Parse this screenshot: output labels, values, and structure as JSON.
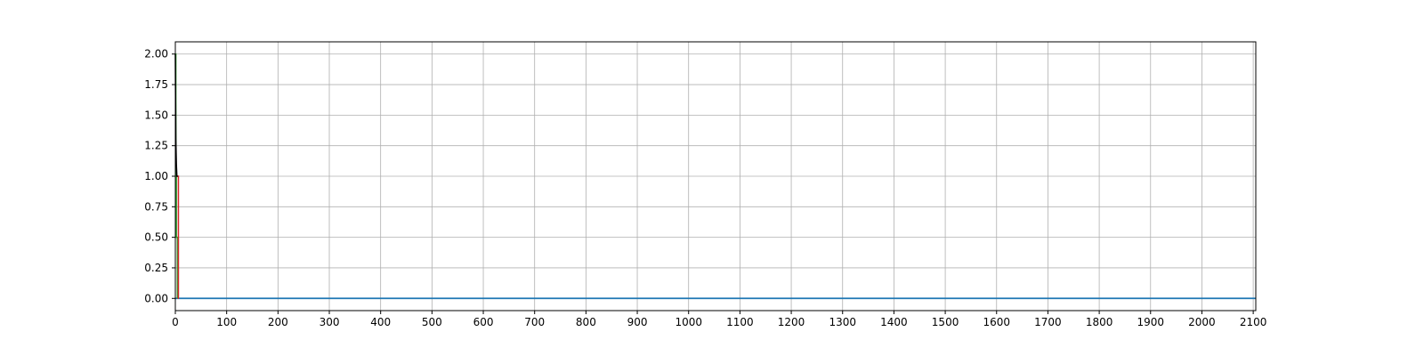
{
  "chart_data": {
    "type": "line",
    "title": "",
    "xlabel": "",
    "ylabel": "",
    "xlim": [
      0,
      2105
    ],
    "ylim": [
      -0.1,
      2.1
    ],
    "grid": true,
    "x_ticks": [
      0,
      100,
      200,
      300,
      400,
      500,
      600,
      700,
      800,
      900,
      1000,
      1100,
      1200,
      1300,
      1400,
      1500,
      1600,
      1700,
      1800,
      1900,
      2000,
      2100
    ],
    "x_tick_labels": [
      "0",
      "100",
      "200",
      "300",
      "400",
      "500",
      "600",
      "700",
      "800",
      "900",
      "1000",
      "1100",
      "1200",
      "1300",
      "1400",
      "1500",
      "1600",
      "1700",
      "1800",
      "1900",
      "2000",
      "2100"
    ],
    "y_ticks": [
      0,
      0.25,
      0.5,
      0.75,
      1.0,
      1.25,
      1.5,
      1.75,
      2.0
    ],
    "y_tick_labels": [
      "0.00",
      "0.25",
      "0.50",
      "0.75",
      "1.00",
      "1.25",
      "1.50",
      "1.75",
      "2.00"
    ],
    "series": [
      {
        "color": "#1f77b4",
        "x": [
          0,
          2105
        ],
        "y": [
          0,
          0
        ]
      },
      {
        "color": "#2ca02c",
        "x": [
          0,
          1,
          1,
          2,
          2,
          4,
          4
        ],
        "y": [
          2.0,
          2.0,
          1.0,
          1.0,
          0.5,
          0.5,
          0
        ]
      },
      {
        "color": "#d62728",
        "x": [
          2,
          3,
          4,
          5,
          6,
          6,
          7
        ],
        "y": [
          1.0,
          1.0,
          1.0,
          1.0,
          1.0,
          0,
          0
        ]
      },
      {
        "color": "#000000",
        "x": [
          0,
          0.5,
          1,
          2,
          3,
          4,
          5
        ],
        "y": [
          2.0,
          1.6,
          1.3,
          1.1,
          1.0,
          1.0,
          1.0
        ]
      }
    ]
  }
}
